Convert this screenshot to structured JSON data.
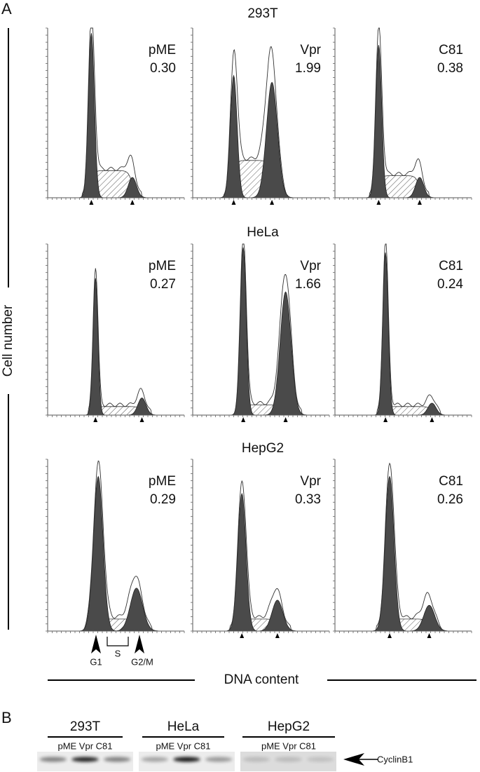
{
  "panel_a": {
    "label": "A",
    "y_axis_label": "Cell number",
    "x_axis_label": "DNA content",
    "rows": [
      {
        "title": "293T",
        "panels": [
          {
            "name": "pME",
            "ratio": "0.30"
          },
          {
            "name": "Vpr",
            "ratio": "1.99"
          },
          {
            "name": "C81",
            "ratio": "0.38"
          }
        ]
      },
      {
        "title": "HeLa",
        "panels": [
          {
            "name": "pME",
            "ratio": "0.27"
          },
          {
            "name": "Vpr",
            "ratio": "1.66"
          },
          {
            "name": "C81",
            "ratio": "0.24"
          }
        ]
      },
      {
        "title": "HepG2",
        "panels": [
          {
            "name": "pME",
            "ratio": "0.29"
          },
          {
            "name": "Vpr",
            "ratio": "0.33"
          },
          {
            "name": "C81",
            "ratio": "0.26"
          }
        ]
      }
    ],
    "phase_labels": {
      "g1": "G1",
      "s": "S",
      "g2m": "G2/M"
    }
  },
  "panel_b": {
    "label": "B",
    "groups": [
      {
        "title": "293T",
        "lanes": "pME Vpr C81"
      },
      {
        "title": "HeLa",
        "lanes": "pME Vpr C81"
      },
      {
        "title": "HepG2",
        "lanes": "pME Vpr C81"
      }
    ],
    "protein": "CyclinB1"
  }
}
